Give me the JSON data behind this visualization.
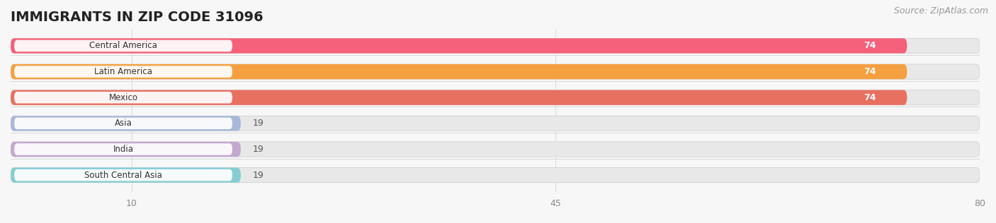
{
  "title": "IMMIGRANTS IN ZIP CODE 31096",
  "source": "Source: ZipAtlas.com",
  "categories": [
    "Central America",
    "Latin America",
    "Mexico",
    "Asia",
    "India",
    "South Central Asia"
  ],
  "values": [
    74,
    74,
    74,
    19,
    19,
    19
  ],
  "bar_colors": [
    "#F5607A",
    "#F5A040",
    "#E87060",
    "#A8B8D8",
    "#C4A8D0",
    "#85CDD0"
  ],
  "xlim_data": 80,
  "xticks": [
    10,
    45,
    80
  ],
  "background_color": "#f7f7f7",
  "bar_bg_color": "#e8e8e8",
  "label_bg_color": "#ffffff",
  "label_text_color": "#333333",
  "value_color_high": "#ffffff",
  "value_color_low": "#555555",
  "title_fontsize": 14,
  "source_fontsize": 9,
  "tick_fontsize": 9,
  "cat_label_fontsize": 8.5,
  "val_label_fontsize": 9,
  "bar_height": 0.58,
  "value_threshold": 50,
  "fig_width": 14.06,
  "fig_height": 3.16,
  "fig_dpi": 100
}
